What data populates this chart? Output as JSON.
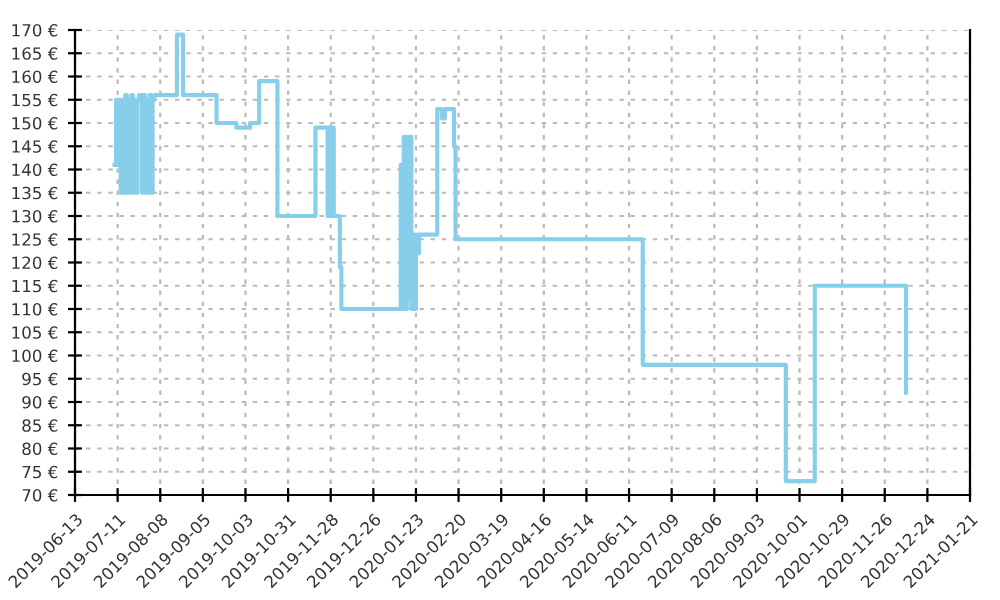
{
  "chart_data": {
    "type": "step",
    "x": [
      "2019-07-09",
      "2019-07-10",
      "2019-07-11",
      "2019-07-12",
      "2019-07-13",
      "2019-07-14",
      "2019-07-15",
      "2019-07-16",
      "2019-07-17",
      "2019-07-18",
      "2019-07-19",
      "2019-07-20",
      "2019-07-21",
      "2019-07-22",
      "2019-07-23",
      "2019-07-24",
      "2019-07-25",
      "2019-07-27",
      "2019-07-28",
      "2019-07-29",
      "2019-07-30",
      "2019-07-31",
      "2019-08-01",
      "2019-08-02",
      "2019-08-03",
      "2019-08-04",
      "2019-08-19",
      "2019-08-23",
      "2019-09-14",
      "2019-09-27",
      "2019-10-06",
      "2019-10-12",
      "2019-10-24",
      "2019-11-18",
      "2019-11-26",
      "2019-11-27",
      "2019-11-28",
      "2019-11-29",
      "2019-11-30",
      "2019-12-04",
      "2019-12-05",
      "2020-01-13",
      "2020-01-14",
      "2020-01-15",
      "2020-01-16",
      "2020-01-17",
      "2020-01-18",
      "2020-01-19",
      "2020-01-20",
      "2020-01-21",
      "2020-01-22",
      "2020-01-23",
      "2020-01-24",
      "2020-01-25",
      "2020-02-06",
      "2020-02-09",
      "2020-02-11",
      "2020-02-17",
      "2020-02-18",
      "2020-06-20",
      "2020-09-22",
      "2020-10-11",
      "2020-12-10"
    ],
    "series": [
      {
        "color": "#87ceeb",
        "values": [
          141,
          155,
          141,
          155,
          135,
          155,
          135,
          156,
          135,
          155,
          135,
          156,
          135,
          155,
          135,
          155,
          156,
          135,
          156,
          135,
          155,
          135,
          156,
          135,
          155,
          156,
          169,
          156,
          150,
          149,
          150,
          159,
          130,
          149,
          130,
          149,
          130,
          149,
          130,
          119,
          110,
          141,
          110,
          147,
          110,
          147,
          112,
          147,
          110,
          126,
          110,
          126,
          122,
          126,
          153,
          151,
          153,
          145,
          125,
          98,
          73,
          115,
          92
        ]
      }
    ],
    "xlim": [
      "2019-06-13",
      "2021-01-21"
    ],
    "xticks": [
      "2019-06-13",
      "2019-07-11",
      "2019-08-08",
      "2019-09-05",
      "2019-10-03",
      "2019-10-31",
      "2019-11-28",
      "2019-12-26",
      "2020-01-23",
      "2020-02-20",
      "2020-03-19",
      "2020-04-16",
      "2020-05-14",
      "2020-06-11",
      "2020-07-09",
      "2020-08-06",
      "2020-09-03",
      "2020-10-01",
      "2020-10-29",
      "2020-11-26",
      "2020-12-24",
      "2021-01-21"
    ],
    "ylim": [
      70,
      170
    ],
    "yticks": [
      {
        "value": 70,
        "label": "70 €"
      },
      {
        "value": 75,
        "label": "75 €"
      },
      {
        "value": 80,
        "label": "80 €"
      },
      {
        "value": 85,
        "label": "85 €"
      },
      {
        "value": 90,
        "label": "90 €"
      },
      {
        "value": 95,
        "label": "95 €"
      },
      {
        "value": 100,
        "label": "100 €"
      },
      {
        "value": 105,
        "label": "105 €"
      },
      {
        "value": 110,
        "label": "110 €"
      },
      {
        "value": 115,
        "label": "115 €"
      },
      {
        "value": 120,
        "label": "120 €"
      },
      {
        "value": 125,
        "label": "125 €"
      },
      {
        "value": 130,
        "label": "130 €"
      },
      {
        "value": 135,
        "label": "135 €"
      },
      {
        "value": 140,
        "label": "140 €"
      },
      {
        "value": 145,
        "label": "145 €"
      },
      {
        "value": 150,
        "label": "150 €"
      },
      {
        "value": 155,
        "label": "155 €"
      },
      {
        "value": 160,
        "label": "160 €"
      },
      {
        "value": 165,
        "label": "165 €"
      },
      {
        "value": 170,
        "label": "170 €"
      }
    ],
    "grid": true,
    "line_style": "solid"
  }
}
